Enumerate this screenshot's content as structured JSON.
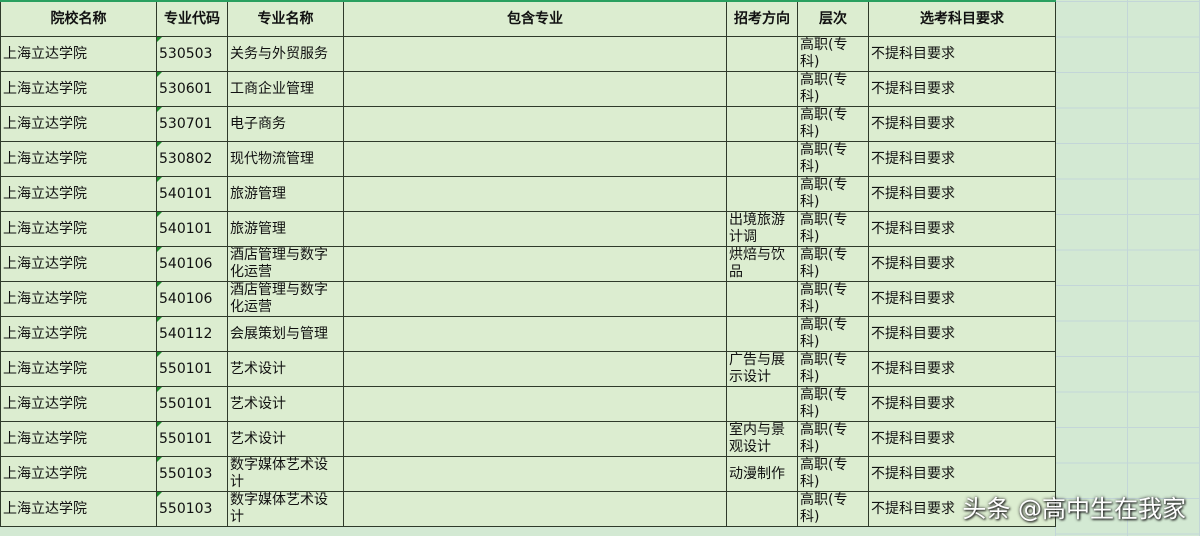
{
  "headers": [
    "院校名称",
    "专业代码",
    "专业名称",
    "包含专业",
    "招考方向",
    "层次",
    "选考科目要求"
  ],
  "rows": [
    [
      "上海立达学院",
      "530503",
      "关务与外贸服务",
      "",
      "",
      "高职(专科)",
      "不提科目要求"
    ],
    [
      "上海立达学院",
      "530601",
      "工商企业管理",
      "",
      "",
      "高职(专科)",
      "不提科目要求"
    ],
    [
      "上海立达学院",
      "530701",
      "电子商务",
      "",
      "",
      "高职(专科)",
      "不提科目要求"
    ],
    [
      "上海立达学院",
      "530802",
      "现代物流管理",
      "",
      "",
      "高职(专科)",
      "不提科目要求"
    ],
    [
      "上海立达学院",
      "540101",
      "旅游管理",
      "",
      "",
      "高职(专科)",
      "不提科目要求"
    ],
    [
      "上海立达学院",
      "540101",
      "旅游管理",
      "",
      "出境旅游计调",
      "高职(专科)",
      "不提科目要求"
    ],
    [
      "上海立达学院",
      "540106",
      "酒店管理与数字化运营",
      "",
      "烘焙与饮品",
      "高职(专科)",
      "不提科目要求"
    ],
    [
      "上海立达学院",
      "540106",
      "酒店管理与数字化运营",
      "",
      "",
      "高职(专科)",
      "不提科目要求"
    ],
    [
      "上海立达学院",
      "540112",
      "会展策划与管理",
      "",
      "",
      "高职(专科)",
      "不提科目要求"
    ],
    [
      "上海立达学院",
      "550101",
      "艺术设计",
      "",
      "广告与展示设计",
      "高职(专科)",
      "不提科目要求"
    ],
    [
      "上海立达学院",
      "550101",
      "艺术设计",
      "",
      "",
      "高职(专科)",
      "不提科目要求"
    ],
    [
      "上海立达学院",
      "550101",
      "艺术设计",
      "",
      "室内与景观设计",
      "高职(专科)",
      "不提科目要求"
    ],
    [
      "上海立达学院",
      "550103",
      "数字媒体艺术设计",
      "",
      "动漫制作",
      "高职(专科)",
      "不提科目要求"
    ],
    [
      "上海立达学院",
      "550103",
      "数字媒体艺术设计",
      "",
      "",
      "高职(专科)",
      "不提科目要求"
    ]
  ],
  "watermark": "头条 @高中生在我家"
}
